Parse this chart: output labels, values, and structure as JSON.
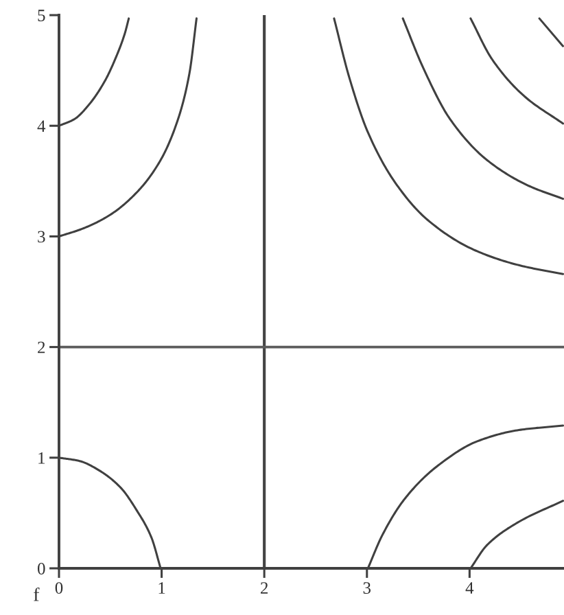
{
  "chart_data": {
    "type": "line",
    "xlim": [
      0,
      4.92
    ],
    "ylim": [
      0,
      5
    ],
    "xticks": [
      0,
      1,
      2,
      3,
      4
    ],
    "yticks": [
      0,
      1,
      2,
      3,
      4,
      5
    ],
    "line_style": "solid",
    "ref_lines": [
      {
        "axis": "x",
        "value": 2,
        "color": "#444444"
      },
      {
        "axis": "y",
        "value": 2,
        "color": "#5c5c5c"
      }
    ],
    "annotations": [
      "f"
    ],
    "series": [
      {
        "color": "#404040",
        "x": [
          0,
          0.2,
          0.4,
          0.6,
          0.76,
          0.9,
          0.99
        ],
        "values": [
          1,
          0.97,
          0.88,
          0.73,
          0.52,
          0.28,
          0
        ]
      },
      {
        "color": "#404040",
        "x": [
          0,
          0.23,
          0.49,
          0.76,
          0.99,
          1.16,
          1.27,
          1.34
        ],
        "values": [
          3.0,
          3.07,
          3.19,
          3.4,
          3.69,
          4.06,
          4.47,
          4.97
        ]
      },
      {
        "color": "#404040",
        "x": [
          0,
          0.15,
          0.3,
          0.45,
          0.56,
          0.64,
          0.68
        ],
        "values": [
          4.0,
          4.06,
          4.2,
          4.41,
          4.63,
          4.83,
          4.97
        ]
      },
      {
        "color": "#404040",
        "x": [
          2.68,
          2.83,
          3.01,
          3.28,
          3.59,
          4.04,
          4.48,
          4.91
        ],
        "values": [
          4.97,
          4.43,
          3.94,
          3.48,
          3.15,
          2.88,
          2.74,
          2.66
        ]
      },
      {
        "color": "#404040",
        "x": [
          3.35,
          3.55,
          3.81,
          4.17,
          4.57,
          4.91
        ],
        "values": [
          4.97,
          4.52,
          4.06,
          3.69,
          3.46,
          3.34
        ]
      },
      {
        "color": "#404040",
        "x": [
          4.01,
          4.22,
          4.53,
          4.91
        ],
        "values": [
          4.97,
          4.6,
          4.27,
          4.02
        ]
      },
      {
        "color": "#404040",
        "x": [
          4.68,
          4.91
        ],
        "values": [
          4.97,
          4.72
        ]
      },
      {
        "color": "#404040",
        "x": [
          3.01,
          3.15,
          3.37,
          3.68,
          4.08,
          4.48,
          4.91
        ],
        "values": [
          0,
          0.3,
          0.63,
          0.92,
          1.15,
          1.25,
          1.29
        ]
      },
      {
        "color": "#404040",
        "x": [
          4.01,
          4.17,
          4.48,
          4.91
        ],
        "values": [
          0,
          0.21,
          0.42,
          0.61
        ]
      }
    ]
  }
}
